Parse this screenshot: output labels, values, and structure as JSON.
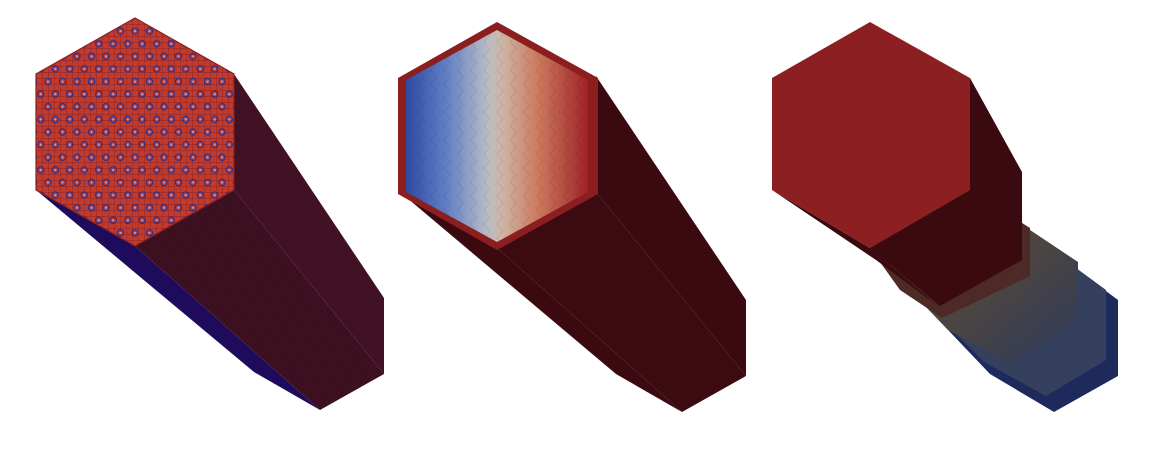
{
  "figure": {
    "panels": [
      {
        "id": "mesh",
        "style": "mesh"
      },
      {
        "id": "gradient",
        "style": "gradient"
      },
      {
        "id": "solid",
        "style": "solid"
      }
    ]
  },
  "colors": {
    "background": "#ffffff",
    "top_face_red": "#b8302a",
    "mesh_line": "#8a1f20",
    "mesh_dot": "#2b2f8f",
    "mesh_side_right": "#3a0f22",
    "mesh_side_left": "#1e0a5a",
    "dark_side": "#3b0a10",
    "dark_side_edge": "#2f080d",
    "rim": "#8b1e1f",
    "cool_blue": "#2f4fa3",
    "neutral_grey": "#c6c2bd",
    "warm_red": "#a02428",
    "solid_top": "#8c1f21",
    "solid_side": "#3a0a0f",
    "fade_grey": "#4f4542",
    "fade_blue": "#2a3a6a",
    "fade_navy": "#1e2a5a"
  }
}
